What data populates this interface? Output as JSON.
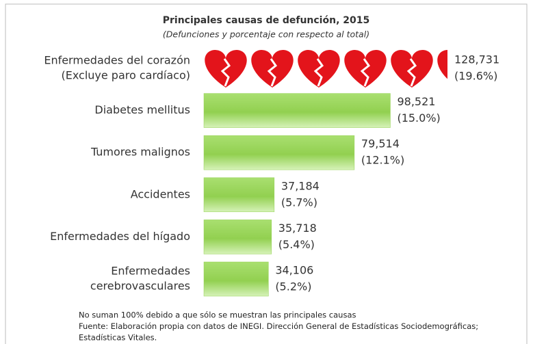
{
  "chart_data": {
    "type": "bar",
    "title": "Principales causas de defunción, 2015",
    "subtitle": "(Defunciones y porcentaje  con respecto  al total)",
    "categories": [
      [
        "Enfermedades del corazón",
        "(Excluye paro cardíaco)"
      ],
      [
        "Diabetes mellitus"
      ],
      [
        "Tumores malignos"
      ],
      [
        "Accidentes"
      ],
      [
        "Enfermedades del hígado"
      ],
      [
        "Enfermedades",
        "cerebrovasculares"
      ]
    ],
    "values": [
      128731,
      98521,
      79514,
      37184,
      35718,
      34106
    ],
    "value_labels": [
      "128,731",
      "98,521",
      "79,514",
      "37,184",
      "35,718",
      "34,106"
    ],
    "shares": [
      19.6,
      15.0,
      12.1,
      5.7,
      5.4,
      5.2
    ],
    "share_labels": [
      "(19.6%)",
      "(15.0%)",
      "(12.1%)",
      "(5.7%)",
      "(5.4%)",
      "(5.2%)"
    ],
    "color": "#92d050",
    "icon_color": "#e3141b",
    "notes": [
      "No suman 100% debido a que sólo se muestran las principales causas",
      "Fuente: Elaboración propia con datos de INEGI.  Dirección General de Estadísticas Sociodemográficas;",
      "Estadísticas Vitales."
    ]
  }
}
